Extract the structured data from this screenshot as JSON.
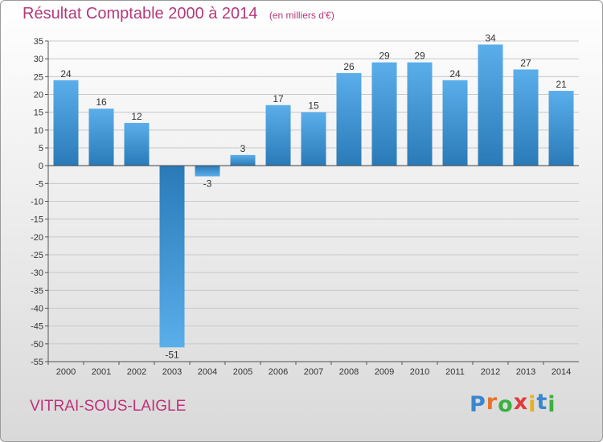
{
  "chart_data": {
    "type": "bar",
    "title": "Résultat Comptable 2000 à 2014",
    "subtitle": "(en milliers d'€)",
    "categories": [
      "2000",
      "2001",
      "2002",
      "2003",
      "2004",
      "2005",
      "2006",
      "2007",
      "2008",
      "2009",
      "2010",
      "2011",
      "2012",
      "2013",
      "2014"
    ],
    "values": [
      24,
      16,
      12,
      -51,
      -3,
      3,
      17,
      15,
      26,
      29,
      29,
      24,
      34,
      27,
      21
    ],
    "ylim": [
      -55,
      35
    ],
    "ytick_step": 5,
    "grid": true,
    "colors": {
      "bar_light": "#5aaeea",
      "bar_dark": "#2a7ab8",
      "grid": "#c8c8c8"
    }
  },
  "footer": {
    "commune": "VITRAI-SOUS-LAIGLE",
    "brand_letters": [
      "P",
      "r",
      "o",
      "x",
      "i",
      "t",
      "i"
    ],
    "brand_colors": [
      "#3a86d0",
      "#e8732a",
      "#3ab040",
      "#e23a3a",
      "#e8b020",
      "#3a86d0",
      "#3ab040"
    ]
  }
}
